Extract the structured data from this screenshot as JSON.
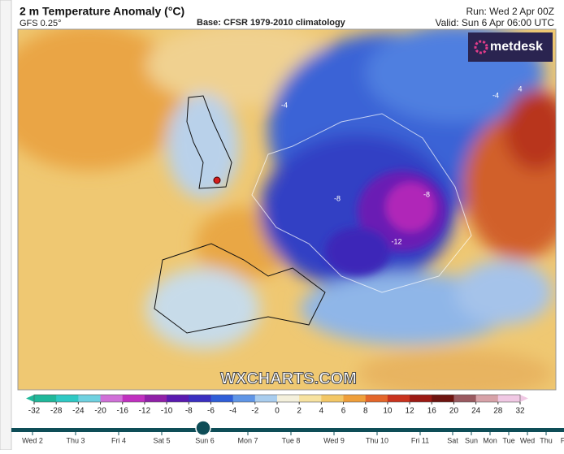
{
  "header": {
    "title": "2 m Temperature Anomaly (°C)",
    "model": "GFS 0.25°",
    "base": "Base: CFSR 1979-2010 climatology",
    "run": "Run: Wed 2 Apr 00Z",
    "valid": "Valid: Sun 6 Apr 06:00 UTC"
  },
  "logo": "metdesk",
  "watermark": "WXCHARTS.COM",
  "contour_labels": [
    "-4",
    "-8",
    "-12",
    "-4",
    "4",
    "-8"
  ],
  "colorbar": {
    "ticks": [
      -32,
      -28,
      -24,
      -20,
      -16,
      -12,
      -10,
      -8,
      -6,
      -4,
      -2,
      0,
      2,
      4,
      6,
      8,
      10,
      12,
      16,
      20,
      24,
      28,
      32
    ],
    "colors": [
      "#1fb89a",
      "#2ec9c4",
      "#6fd1e0",
      "#d070d8",
      "#c030c0",
      "#9020a8",
      "#5a1ab0",
      "#3a2fc0",
      "#2f5ed8",
      "#5f95e6",
      "#a9cdee",
      "#f4f0dc",
      "#f7e2a0",
      "#f3c766",
      "#ef9f3a",
      "#e4662a",
      "#c9331e",
      "#9c1a14",
      "#6e1410",
      "#9a5a60",
      "#d7a2a8",
      "#f0c8e4"
    ]
  },
  "timeline": {
    "days": [
      "Wed 2",
      "Thu 3",
      "Fri 4",
      "Sat 5",
      "Sun 6",
      "Mon 7",
      "Tue 8",
      "Wed 9",
      "Thu 10",
      "Fri 11",
      "Sat",
      "Sun",
      "Mon",
      "Tue",
      "Wed",
      "Thu",
      "Fri"
    ],
    "selected": 4
  }
}
